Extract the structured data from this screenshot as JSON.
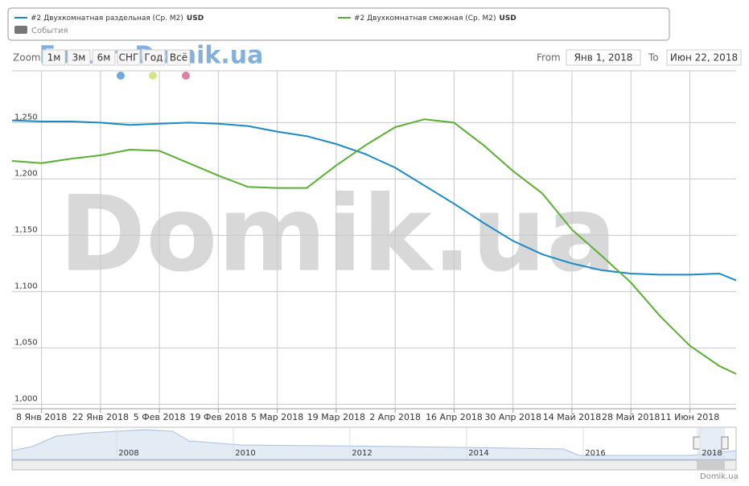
{
  "chart_data": {
    "type": "line",
    "x": [
      "2018-01-01",
      "2018-01-08",
      "2018-01-15",
      "2018-01-22",
      "2018-01-29",
      "2018-02-05",
      "2018-02-12",
      "2018-02-19",
      "2018-02-26",
      "2018-03-05",
      "2018-03-12",
      "2018-03-19",
      "2018-03-26",
      "2018-04-02",
      "2018-04-09",
      "2018-04-16",
      "2018-04-23",
      "2018-04-30",
      "2018-05-07",
      "2018-05-14",
      "2018-05-21",
      "2018-05-28",
      "2018-06-04",
      "2018-06-11",
      "2018-06-18",
      "2018-06-22"
    ],
    "series": [
      {
        "name": "#2 Двухкомнатная раздельная (Ср. М2)",
        "unit": "USD",
        "color": "#1a8bc8",
        "values": [
          1252,
          1251,
          1251,
          1250,
          1248,
          1249,
          1250,
          1249,
          1247,
          1242,
          1238,
          1231,
          1222,
          1210,
          1194,
          1178,
          1161,
          1145,
          1133,
          1125,
          1119,
          1116,
          1115,
          1115,
          1116,
          1110
        ]
      },
      {
        "name": "#2 Двухкомнатная смежная (Ср. М2)",
        "unit": "USD",
        "color": "#5ab031",
        "values": [
          1216,
          1214,
          1218,
          1221,
          1226,
          1225,
          1214,
          1203,
          1193,
          1192,
          1192,
          1212,
          1230,
          1246,
          1253,
          1250,
          1230,
          1207,
          1187,
          1155,
          1132,
          1108,
          1078,
          1052,
          1034,
          1027
        ]
      }
    ],
    "xlim": [
      "2018-01-01",
      "2018-06-22"
    ],
    "xticks": [
      {
        "value": "2018-01-08",
        "label": "8 Янв 2018"
      },
      {
        "value": "2018-01-22",
        "label": "22 Янв 2018"
      },
      {
        "value": "2018-02-05",
        "label": "5 Фев 2018"
      },
      {
        "value": "2018-02-19",
        "label": "19 Фев 2018"
      },
      {
        "value": "2018-03-05",
        "label": "5 Мар 2018"
      },
      {
        "value": "2018-03-19",
        "label": "19 Мар 2018"
      },
      {
        "value": "2018-04-02",
        "label": "2 Апр 2018"
      },
      {
        "value": "2018-04-16",
        "label": "16 Апр 2018"
      },
      {
        "value": "2018-04-30",
        "label": "30 Апр 2018"
      },
      {
        "value": "2018-05-14",
        "label": "14 Май 2018"
      },
      {
        "value": "2018-05-28",
        "label": "28 Май 2018"
      },
      {
        "value": "2018-06-11",
        "label": "11 Июн 2018"
      }
    ],
    "ylim": [
      996,
      1296
    ],
    "yticks": [
      {
        "value": 1000,
        "label": "1,000"
      },
      {
        "value": 1050,
        "label": "1,050"
      },
      {
        "value": 1100,
        "label": "1,100"
      },
      {
        "value": 1150,
        "label": "1,150"
      },
      {
        "value": 1200,
        "label": "1,200"
      },
      {
        "value": 1250,
        "label": "1,250"
      }
    ],
    "grid": true
  },
  "ui": {
    "events": "События",
    "zoom_label": "Zoom",
    "zoom_buttons": [
      "1м",
      "3м",
      "6м",
      "СНГ",
      "Год",
      "Всё"
    ],
    "from_label": "From",
    "from_value": "Янв 1, 2018",
    "to_label": "To",
    "to_value": "Июн 22, 2018",
    "watermark": "Domik.ua",
    "forum_watermark": "Forum.Domik.ua",
    "navigator_years": [
      "2008",
      "2010",
      "2012",
      "2014",
      "2016",
      "2018"
    ],
    "credits": "Domik.ua"
  }
}
